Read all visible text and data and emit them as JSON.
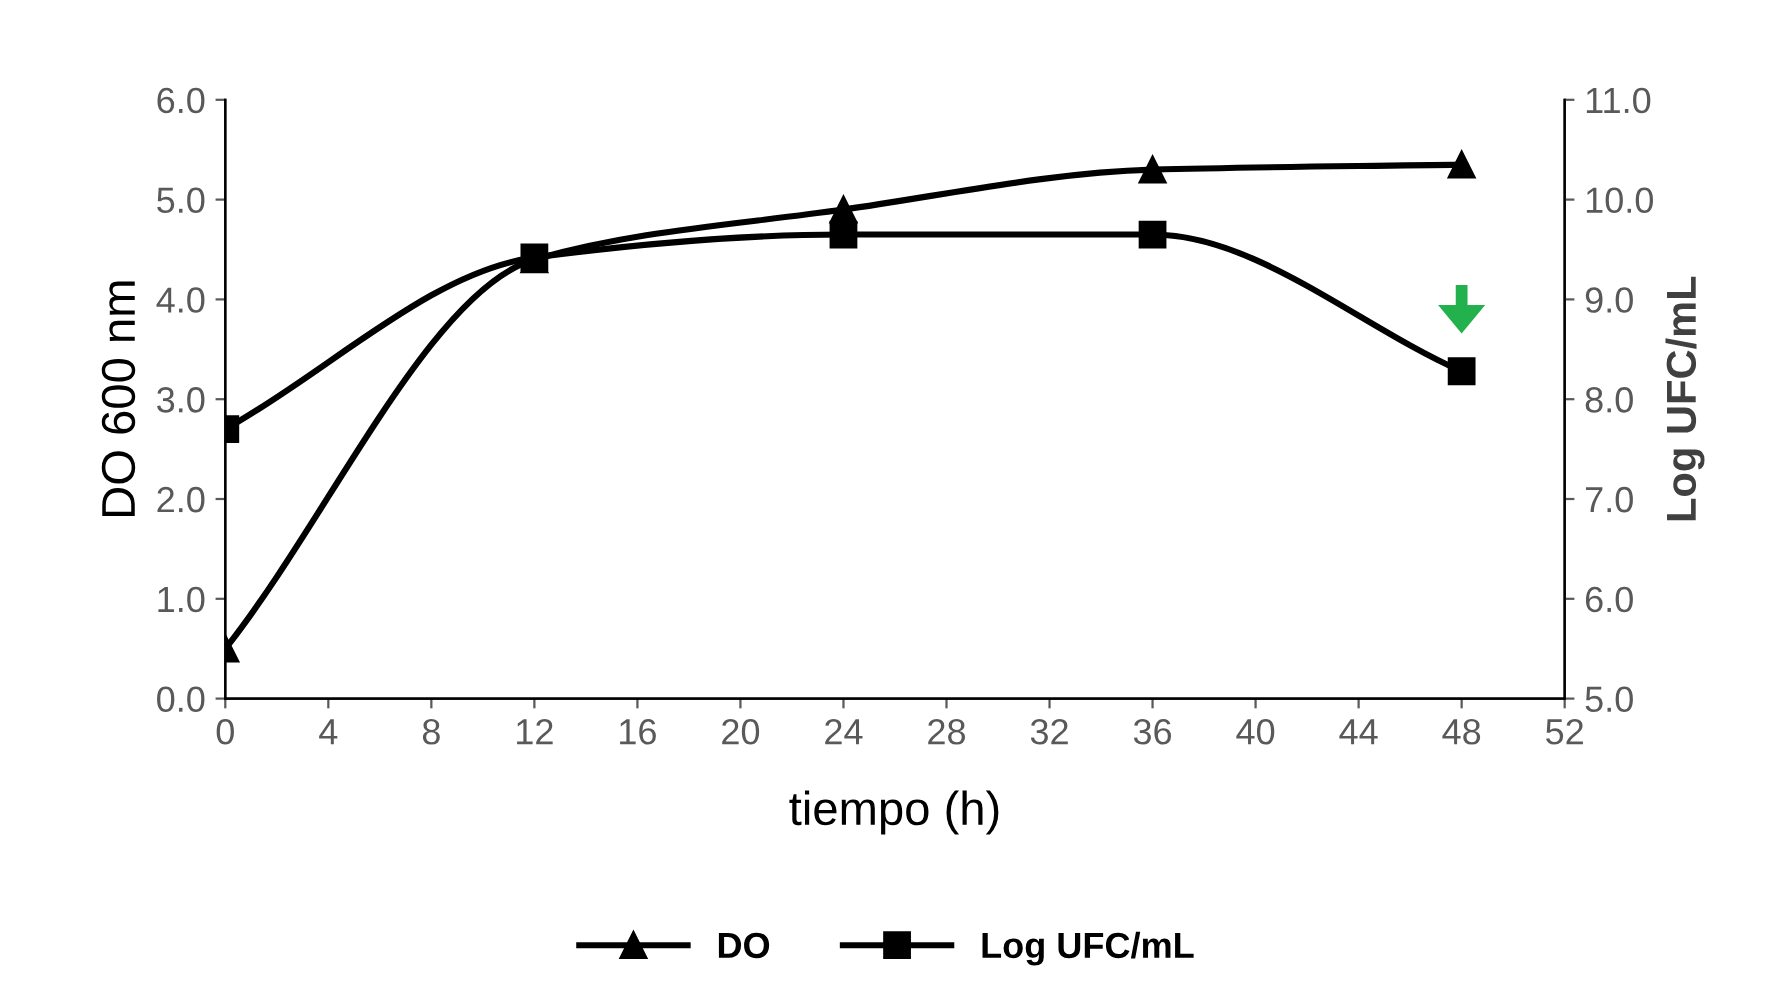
{
  "chart_data": {
    "type": "line",
    "xlabel": "tiempo (h)",
    "ylabel": "DO 600 nm",
    "y2label": "Log UFC/mL",
    "xlim": [
      0,
      52
    ],
    "xticks": [
      0,
      4,
      8,
      12,
      16,
      20,
      24,
      28,
      32,
      36,
      40,
      44,
      48,
      52
    ],
    "ylim": [
      0,
      6
    ],
    "yticks": [
      {
        "value": 0,
        "label": "0.0"
      },
      {
        "value": 1,
        "label": "1.0"
      },
      {
        "value": 2,
        "label": "2.0"
      },
      {
        "value": 3,
        "label": "3.0"
      },
      {
        "value": 4,
        "label": "4.0"
      },
      {
        "value": 5,
        "label": "5.0"
      },
      {
        "value": 6,
        "label": "6.0"
      }
    ],
    "y2lim": [
      5,
      11
    ],
    "y2ticks": [
      {
        "value": 5,
        "label": "5.0"
      },
      {
        "value": 6,
        "label": "6.0"
      },
      {
        "value": 7,
        "label": "7.0"
      },
      {
        "value": 8,
        "label": "8.0"
      },
      {
        "value": 9,
        "label": "9.0"
      },
      {
        "value": 10,
        "label": "10.0"
      },
      {
        "value": 11,
        "label": "11.0"
      }
    ],
    "x": [
      0,
      12,
      24,
      36,
      48
    ],
    "series": [
      {
        "name": "DO",
        "color": "#000000",
        "marker": "triangle",
        "values": [
          0.5,
          4.4,
          4.9,
          5.3,
          5.35
        ]
      },
      {
        "name": "Log UFC/mL",
        "color": "#000000",
        "marker": "square",
        "axis": "y2",
        "values": [
          7.7,
          9.42,
          9.65,
          9.65,
          8.28
        ]
      }
    ],
    "grid": false,
    "legend": "bottom",
    "line_style": "solid"
  }
}
